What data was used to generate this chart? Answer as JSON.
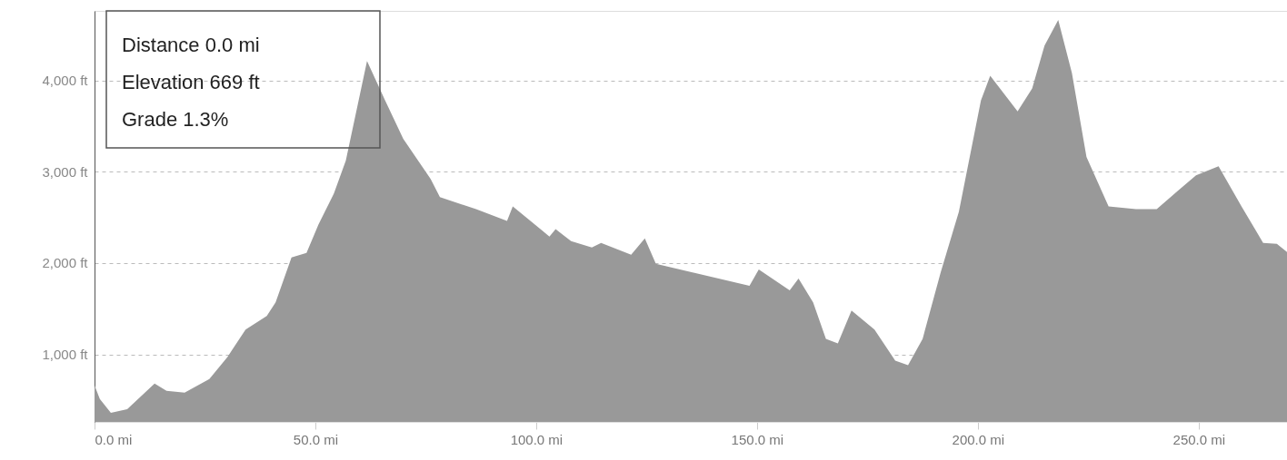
{
  "chart_data": {
    "type": "area",
    "x": [
      0,
      1.2,
      3.7,
      7.4,
      13.6,
      16.3,
      20.4,
      26,
      30.1,
      34.2,
      39,
      41,
      44.6,
      48,
      50.7,
      54.2,
      56.9,
      61.7,
      65.8,
      69.9,
      76.1,
      78.2,
      86.4,
      93.4,
      94.7,
      103,
      104.4,
      107.9,
      112.6,
      114.7,
      121.5,
      124.6,
      127.1,
      148.3,
      150.4,
      157.4,
      159.4,
      162.7,
      165.6,
      168.3,
      171.4,
      176.6,
      181.3,
      184.2,
      187.5,
      191.6,
      195.7,
      200.7,
      202.8,
      209,
      212.3,
      215.1,
      218.2,
      221.3,
      224.6,
      229.6,
      235.8,
      240.5,
      245.3,
      249.4,
      254.5,
      259.7,
      264.6,
      267.7,
      270
    ],
    "series": [
      {
        "color": "#999999",
        "values": [
          660,
          510,
          360,
          400,
          680,
          600,
          580,
          730,
          970,
          1270,
          1420,
          1570,
          2060,
          2110,
          2420,
          2760,
          3120,
          4210,
          3780,
          3360,
          2920,
          2720,
          2590,
          2460,
          2620,
          2290,
          2370,
          2240,
          2170,
          2220,
          2090,
          2270,
          1990,
          1750,
          1930,
          1700,
          1830,
          1570,
          1170,
          1120,
          1480,
          1270,
          930,
          880,
          1170,
          1900,
          2560,
          3780,
          4050,
          3660,
          3910,
          4380,
          4660,
          4080,
          3160,
          2620,
          2590,
          2590,
          2790,
          2960,
          3060,
          2620,
          2220,
          2210,
          2120
        ]
      }
    ],
    "xlim": [
      0,
      270
    ],
    "ylim": [
      260,
      4760
    ],
    "xticks": [
      {
        "value": 0,
        "label": "0.0 mi"
      },
      {
        "value": 50,
        "label": "50.0 mi"
      },
      {
        "value": 100,
        "label": "100.0 mi"
      },
      {
        "value": 150,
        "label": "150.0 mi"
      },
      {
        "value": 200,
        "label": "200.0 mi"
      },
      {
        "value": 250,
        "label": "250.0 mi"
      }
    ],
    "yticks": [
      {
        "value": 1000,
        "label": "1,000 ft"
      },
      {
        "value": 2000,
        "label": "2,000 ft"
      },
      {
        "value": 3000,
        "label": "3,000 ft"
      },
      {
        "value": 4000,
        "label": "4,000 ft"
      }
    ],
    "grid": "y",
    "annotations": [
      "Distance 0.0 mi",
      "Elevation 669 ft",
      "Grade 1.3%"
    ]
  }
}
